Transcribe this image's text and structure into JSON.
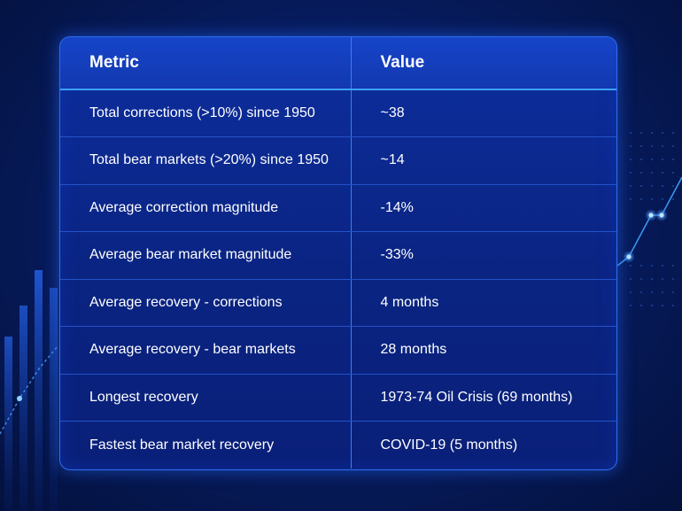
{
  "table": {
    "headers": {
      "metric": "Metric",
      "value": "Value"
    },
    "rows": [
      {
        "metric": "Total corrections (>10%) since 1950",
        "value": "~38"
      },
      {
        "metric": "Total bear markets (>20%) since 1950",
        "value": "~14"
      },
      {
        "metric": "Average correction magnitude",
        "value": "-14%"
      },
      {
        "metric": "Average bear market magnitude",
        "value": "-33%"
      },
      {
        "metric": "Average recovery - corrections",
        "value": "4 months"
      },
      {
        "metric": "Average recovery - bear markets",
        "value": "28 months"
      },
      {
        "metric": "Longest recovery",
        "value": "1973-74 Oil Crisis (69 months)"
      },
      {
        "metric": "Fastest bear market recovery",
        "value": "COVID-19 (5 months)"
      }
    ]
  },
  "colors": {
    "background": "#071d63",
    "table_border": "#2f6df0",
    "header_divider": "#3aa2ff"
  }
}
